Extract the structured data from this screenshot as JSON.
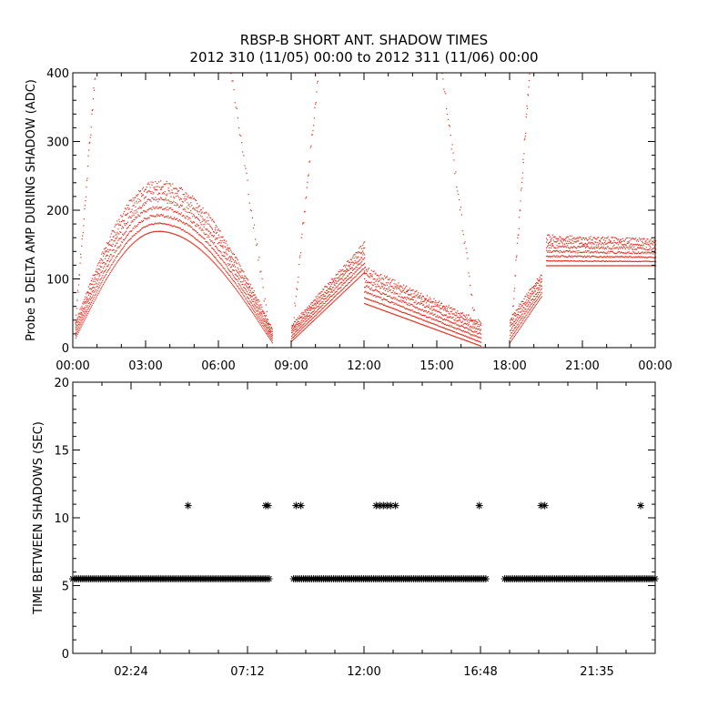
{
  "figure": {
    "title_line1": "RBSP-B SHORT ANT. SHADOW TIMES",
    "title_line2": "2012 310 (11/05) 00:00 to 2012 311 (11/06) 00:00"
  },
  "colors": {
    "data_top": "#e0301e",
    "data_bottom": "#000000",
    "axis": "#000000",
    "background": "#ffffff"
  },
  "chart_data": [
    {
      "type": "scatter",
      "title": "",
      "xlabel": "",
      "ylabel": "Probe 5 DELTA AMP DURING SHADOW (ADC)",
      "xlim": [
        0,
        24
      ],
      "ylim": [
        0,
        400
      ],
      "grid": false,
      "xticks": [
        "00:00",
        "03:00",
        "06:00",
        "09:00",
        "12:00",
        "15:00",
        "18:00",
        "21:00",
        "00:00"
      ],
      "yticks": [
        "0",
        "100",
        "200",
        "300",
        "400"
      ],
      "bands": [
        {
          "x0": 0.1,
          "x1": 8.2,
          "shape": "arch",
          "lo_start": 15,
          "lo_peak": 170,
          "lo_end": 8,
          "hi_start": 40,
          "hi_peak": 245,
          "hi_end": 30,
          "peak_x": 3.5
        },
        {
          "x0": 9.0,
          "x1": 12.0,
          "shape": "ramp",
          "lo_start": 10,
          "lo_end": 110,
          "hi_start": 35,
          "hi_end": 155
        },
        {
          "x0": 12.0,
          "x1": 16.8,
          "shape": "ramp",
          "lo_start": 65,
          "lo_end": 3,
          "hi_start": 120,
          "hi_end": 40
        },
        {
          "x0": 18.0,
          "x1": 19.3,
          "shape": "ramp",
          "lo_start": 8,
          "lo_end": 75,
          "hi_start": 45,
          "hi_end": 110
        },
        {
          "x0": 19.5,
          "x1": 24.0,
          "shape": "flat",
          "lo_start": 120,
          "lo_end": 120,
          "hi_start": 165,
          "hi_end": 160
        }
      ],
      "spikes": [
        {
          "x0": 0.1,
          "x1": 0.9,
          "y0": 40,
          "y1": 400
        },
        {
          "x0": 6.5,
          "x1": 8.1,
          "y0": 400,
          "y1": 20
        },
        {
          "x0": 9.1,
          "x1": 10.1,
          "y0": 50,
          "y1": 400
        },
        {
          "x0": 15.2,
          "x1": 16.6,
          "y0": 400,
          "y1": 30
        },
        {
          "x0": 18.1,
          "x1": 18.8,
          "y0": 50,
          "y1": 400
        }
      ]
    },
    {
      "type": "scatter",
      "title": "",
      "xlabel": "",
      "ylabel": "TIME BETWEEN SHADOWS (SEC)",
      "xlim": [
        0,
        24
      ],
      "ylim": [
        0,
        20
      ],
      "grid": false,
      "xtick_values": [
        2.4,
        7.2,
        12.0,
        16.8,
        21.6
      ],
      "xticks": [
        "02:24",
        "07:12",
        "12:00",
        "16:48",
        "21:35"
      ],
      "yticks": [
        "0",
        "5",
        "10",
        "15",
        "20"
      ],
      "series": [
        {
          "name": "",
          "segments": [
            [
              0.0,
              8.15,
              5.5
            ],
            [
              9.1,
              17.1,
              5.5
            ],
            [
              17.8,
              24.0,
              5.5
            ]
          ]
        },
        {
          "name": "",
          "points": [
            [
              4.75,
              10.9
            ],
            [
              7.95,
              10.9
            ],
            [
              8.05,
              10.9
            ],
            [
              9.2,
              10.9
            ],
            [
              9.4,
              10.9
            ],
            [
              12.5,
              10.9
            ],
            [
              12.65,
              10.9
            ],
            [
              12.8,
              10.9
            ],
            [
              12.95,
              10.9
            ],
            [
              13.1,
              10.9
            ],
            [
              13.3,
              10.9
            ],
            [
              16.75,
              10.9
            ],
            [
              19.3,
              10.9
            ],
            [
              19.45,
              10.9
            ],
            [
              23.4,
              10.9
            ]
          ]
        }
      ]
    }
  ]
}
